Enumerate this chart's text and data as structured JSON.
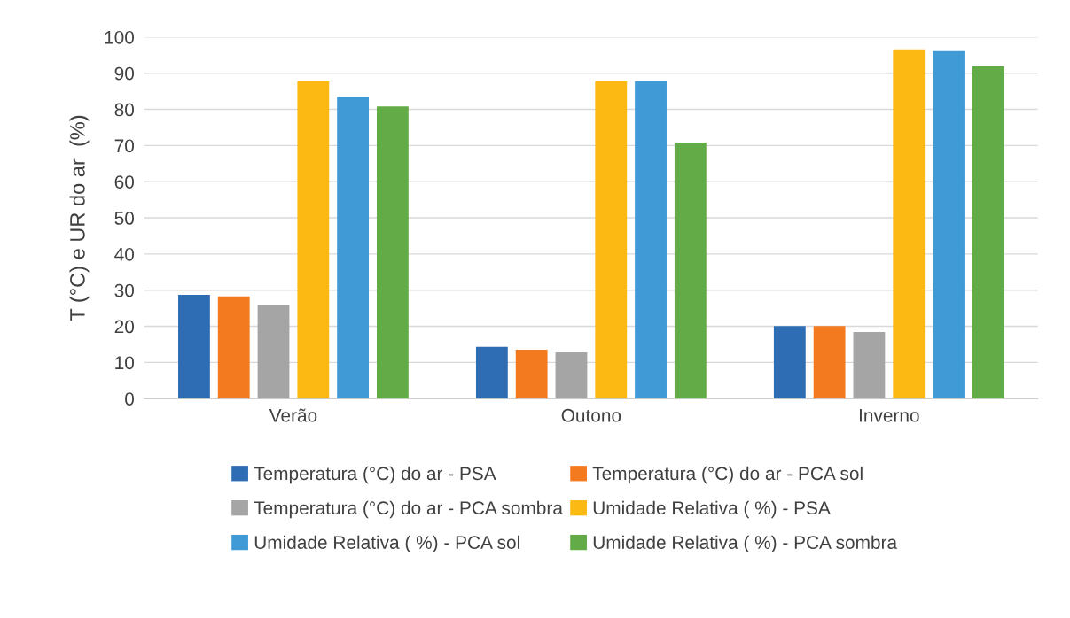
{
  "chart_data": {
    "type": "bar",
    "ylabel": "T (°C) e UR do ar  (%)",
    "categories": [
      "Verão",
      "Outono",
      "Inverno"
    ],
    "series": [
      {
        "name": "Temperatura (°C) do ar - PSA",
        "color": "#2e6db4",
        "values": [
          28.7,
          14.3,
          20.1
        ]
      },
      {
        "name": "Temperatura (°C) do ar - PCA sol",
        "color": "#f47a20",
        "values": [
          28.3,
          13.5,
          20.1
        ]
      },
      {
        "name": "Temperatura (°C) do ar - PCA sombra",
        "color": "#a5a5a5",
        "values": [
          26.0,
          12.8,
          18.4
        ]
      },
      {
        "name": "Umidade Relativa ( %) - PSA",
        "color": "#fdb913",
        "values": [
          87.7,
          87.7,
          96.6
        ]
      },
      {
        "name": "Umidade Relativa ( %) - PCA sol",
        "color": "#3f9ad6",
        "values": [
          83.5,
          87.7,
          96.1
        ]
      },
      {
        "name": "Umidade Relativa ( %) - PCA sombra",
        "color": "#62ab46",
        "values": [
          80.8,
          70.8,
          91.9
        ]
      }
    ],
    "ylim": [
      0,
      100
    ],
    "yticks": [
      0,
      10,
      20,
      30,
      40,
      50,
      60,
      70,
      80,
      90,
      100
    ],
    "grid": "y",
    "legend": "bottom"
  }
}
